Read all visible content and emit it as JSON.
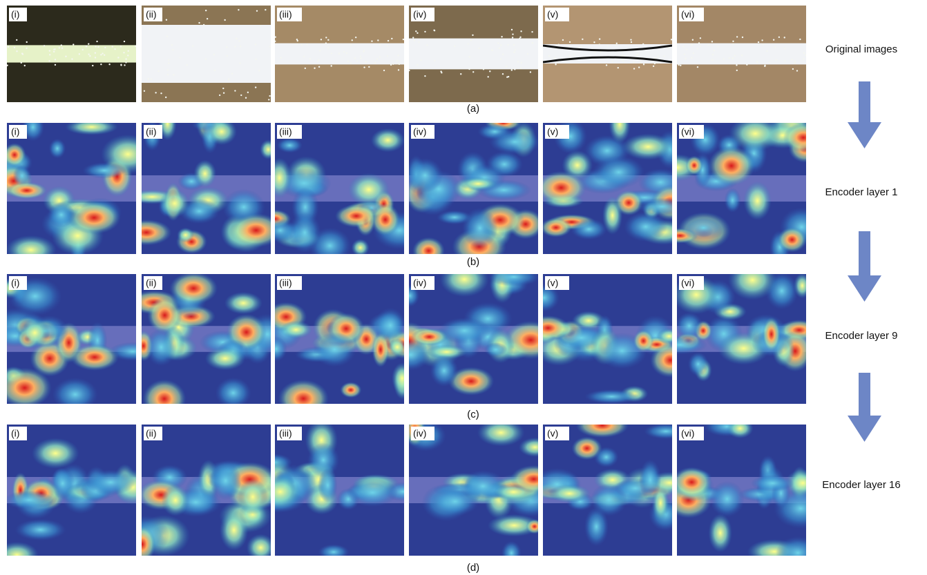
{
  "rows": [
    {
      "caption": "(a)",
      "row_label": "Original images",
      "panels": [
        "(i)",
        "(ii)",
        "(iii)",
        "(iv)",
        "(v)",
        "(vi)"
      ]
    },
    {
      "caption": "(b)",
      "row_label": "Encoder layer 1",
      "panels": [
        "(i)",
        "(ii)",
        "(iii)",
        "(iv)",
        "(v)",
        "(vi)"
      ]
    },
    {
      "caption": "(c)",
      "row_label": "Encoder layer 9",
      "panels": [
        "(i)",
        "(ii)",
        "(iii)",
        "(iv)",
        "(v)",
        "(vi)"
      ]
    },
    {
      "caption": "(d)",
      "row_label": "Encoder layer 16",
      "panels": [
        "(i)",
        "(ii)",
        "(iii)",
        "(iv)",
        "(v)",
        "(vi)"
      ]
    }
  ]
}
